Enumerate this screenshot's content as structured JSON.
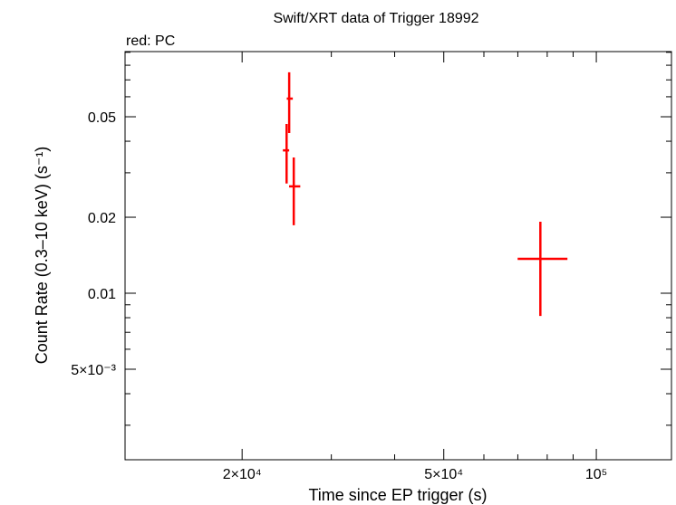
{
  "chart_data": {
    "type": "scatter",
    "title": "Swift/XRT data of Trigger 18992",
    "subtitle": "red: PC",
    "xlabel": "Time since EP trigger (s)",
    "ylabel": "Count Rate (0.3–10 keV) (s⁻¹)",
    "xscale": "log",
    "yscale": "log",
    "xlim": [
      11750,
      140700
    ],
    "ylim": [
      0.00219,
      0.0906
    ],
    "x_ticks": [
      {
        "value": 20000,
        "label": "2×10⁴"
      },
      {
        "value": 50000,
        "label": "5×10⁴"
      },
      {
        "value": 100000,
        "label": "10⁵"
      }
    ],
    "y_ticks": [
      {
        "value": 0.05,
        "label": "0.05"
      },
      {
        "value": 0.02,
        "label": "0.02"
      },
      {
        "value": 0.01,
        "label": "0.01"
      },
      {
        "value": 0.005,
        "label": "5×10⁻³"
      }
    ],
    "grid": false,
    "series": [
      {
        "name": "PC",
        "color": "#ff0000",
        "points": [
          {
            "x": 24480,
            "xlo": 24070,
            "xhi": 24770,
            "y": 0.0368,
            "ylo": 0.0272,
            "yhi": 0.0468
          },
          {
            "x": 24770,
            "xlo": 24500,
            "xhi": 25180,
            "y": 0.059,
            "ylo": 0.0431,
            "yhi": 0.075
          },
          {
            "x": 25290,
            "xlo": 24760,
            "xhi": 26050,
            "y": 0.0265,
            "ylo": 0.0186,
            "yhi": 0.0345
          },
          {
            "x": 77550,
            "xlo": 69940,
            "xhi": 87700,
            "y": 0.01368,
            "ylo": 0.00813,
            "yhi": 0.0192
          }
        ]
      }
    ]
  }
}
